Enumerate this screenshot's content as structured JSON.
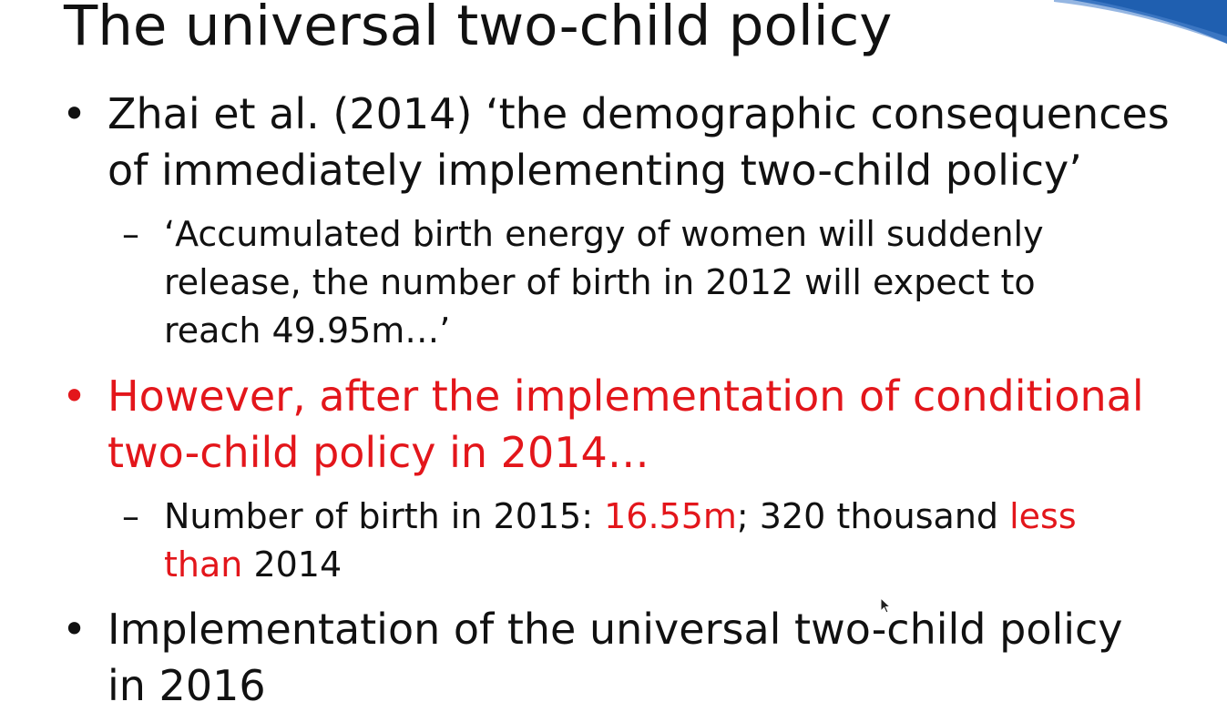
{
  "slide": {
    "title": "The universal two-child policy",
    "bullets": [
      {
        "marker": "•",
        "lines": [
          "Zhai et al. (2014) ‘the demographic consequences",
          "of immediately implementing two-child policy’"
        ],
        "color": "#111111",
        "subbullets": [
          {
            "marker": "–",
            "lines": [
              "‘Accumulated birth energy of women will suddenly",
              "release, the number of birth in 2012 will expect to",
              "reach 49.95m…’"
            ]
          }
        ]
      },
      {
        "marker": "•",
        "lines": [
          "However, after the implementation of conditional",
          "two-child policy in 2014…"
        ],
        "color": "#e3161b",
        "subbullets": [
          {
            "marker": "–",
            "segments": {
              "part1": "Number of birth in 2015: ",
              "part2_red": "16.55m",
              "part3": "; 320 thousand ",
              "part4_red": "less",
              "part5_red": "than",
              "part6": " 2014"
            }
          }
        ]
      },
      {
        "marker": "•",
        "lines": [
          "Implementation of the universal two-child policy",
          "in 2016"
        ],
        "color": "#111111"
      }
    ]
  },
  "colors": {
    "accent_red": "#e3161b",
    "text": "#111111",
    "swoosh_blue": "#1f5fb0"
  },
  "icons": {
    "corner": "blue-swoosh-decoration",
    "pointer": "mouse-cursor-icon"
  }
}
